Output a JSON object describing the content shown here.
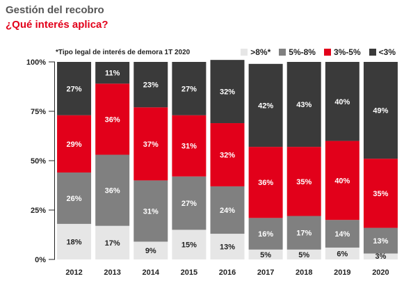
{
  "header": {
    "title": "Gestión del recobro",
    "subtitle": "¿Qué interés aplica?"
  },
  "colors": {
    "gt8": "#e6e6e6",
    "r5_8": "#808080",
    "r3_5": "#e2001a",
    "lt3": "#3a3a3a",
    "title": "#555555",
    "subtitle": "#e2001a"
  },
  "chart_data": {
    "type": "bar",
    "stacked": true,
    "note": "*Tipo legal de interés de demora 1T 2020",
    "categories": [
      "2012",
      "2013",
      "2014",
      "2015",
      "2016",
      "2017",
      "2018",
      "2019",
      "2020"
    ],
    "series": [
      {
        "name": ">8%*",
        "color": "#e6e6e6",
        "values": [
          18,
          17,
          9,
          15,
          13,
          5,
          5,
          6,
          3
        ]
      },
      {
        "name": "5%-8%",
        "color": "#808080",
        "values": [
          26,
          36,
          31,
          27,
          24,
          16,
          17,
          14,
          13
        ]
      },
      {
        "name": "3%-5%",
        "color": "#e2001a",
        "values": [
          29,
          36,
          37,
          31,
          32,
          36,
          35,
          40,
          35
        ]
      },
      {
        "name": "<3%",
        "color": "#3a3a3a",
        "values": [
          27,
          11,
          23,
          27,
          32,
          42,
          43,
          40,
          49
        ]
      }
    ],
    "yticks": [
      "0%",
      "25%",
      "50%",
      "75%",
      "100%"
    ],
    "ylim": [
      0,
      100
    ],
    "legend_position": "top-right",
    "grid": false
  }
}
